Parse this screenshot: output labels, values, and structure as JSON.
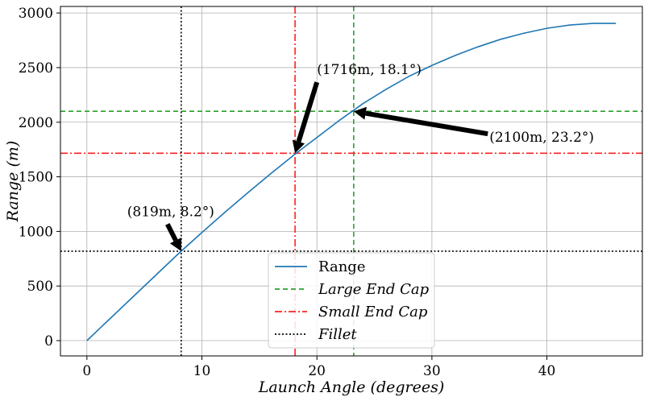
{
  "chart_data": {
    "type": "line",
    "xlabel": "Launch Angle (degrees)",
    "ylabel": "Range (m)",
    "xlim": [
      -2.3,
      48.3
    ],
    "ylim": [
      -140,
      3060
    ],
    "x_ticks": [
      0,
      10,
      20,
      30,
      40
    ],
    "y_ticks": [
      0,
      500,
      1000,
      1500,
      2000,
      2500,
      3000
    ],
    "grid": true,
    "legend_position": "bottom-center",
    "series": [
      {
        "name": "Range",
        "color": "#1f77b4",
        "x": [
          0,
          2,
          4,
          6,
          8,
          10,
          12,
          14,
          16,
          18,
          20,
          22,
          24,
          26,
          28,
          30,
          32,
          34,
          36,
          38,
          40,
          42,
          44,
          46
        ],
        "y": [
          0,
          200,
          400,
          600,
          800,
          990,
          1175,
          1355,
          1530,
          1700,
          1860,
          2020,
          2170,
          2300,
          2420,
          2520,
          2610,
          2690,
          2760,
          2815,
          2860,
          2890,
          2905,
          2905
        ]
      }
    ],
    "reference_lines": [
      {
        "name": "Large End Cap",
        "color": "#2ca02c",
        "style": "dashed",
        "x": 23.2,
        "y": 2100
      },
      {
        "name": "Small End Cap",
        "color": "#ff2020",
        "style": "dashdot",
        "x": 18.1,
        "y": 1716
      },
      {
        "name": "Fillet",
        "color": "#000000",
        "style": "dotted",
        "x": 8.2,
        "y": 819
      }
    ],
    "annotations": [
      {
        "text": "(1716m, 18.1°)",
        "point": [
          18.1,
          1716
        ],
        "text_at": [
          20,
          2440
        ]
      },
      {
        "text": "(2100m, 23.2°)",
        "point": [
          23.2,
          2100
        ],
        "text_at": [
          35,
          1820
        ]
      },
      {
        "text": "(819m, 8.2°)",
        "point": [
          8.2,
          819
        ],
        "text_at": [
          3.5,
          1140
        ]
      }
    ]
  }
}
